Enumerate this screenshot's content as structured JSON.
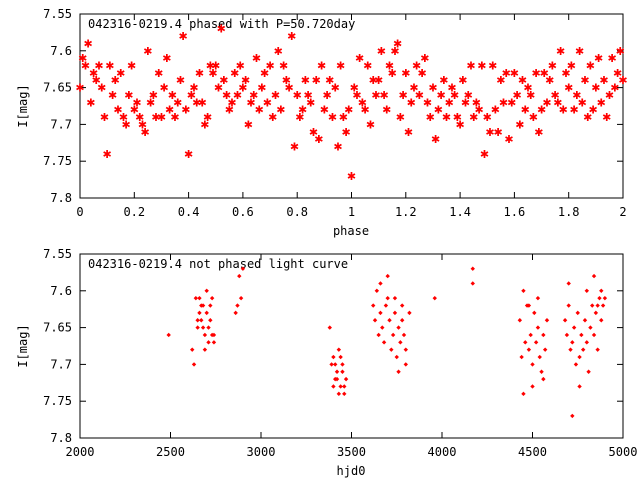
{
  "chart_data": [
    {
      "type": "scatter",
      "title": "042316-0219.4 phased with P=50.720day",
      "xlabel": "phase",
      "ylabel": "I[mag]",
      "xlim": [
        0,
        2
      ],
      "ylim": [
        7.8,
        7.55
      ],
      "y_inverted": true,
      "x_ticks": [
        "0",
        "0.2",
        "0.4",
        "0.6",
        "0.8",
        "1",
        "1.2",
        "1.4",
        "1.6",
        "1.8",
        "2"
      ],
      "y_ticks": [
        "7.55",
        "7.6",
        "7.65",
        "7.7",
        "7.75",
        "7.8"
      ],
      "grid": false,
      "marker": "star",
      "marker_color": "#ff0000",
      "points": [
        [
          0.0,
          7.65
        ],
        [
          0.01,
          7.61
        ],
        [
          0.02,
          7.62
        ],
        [
          0.03,
          7.59
        ],
        [
          0.04,
          7.67
        ],
        [
          0.05,
          7.63
        ],
        [
          0.06,
          7.64
        ],
        [
          0.07,
          7.62
        ],
        [
          0.08,
          7.65
        ],
        [
          0.09,
          7.69
        ],
        [
          0.1,
          7.74
        ],
        [
          0.11,
          7.62
        ],
        [
          0.12,
          7.66
        ],
        [
          0.13,
          7.64
        ],
        [
          0.14,
          7.68
        ],
        [
          0.15,
          7.63
        ],
        [
          0.16,
          7.69
        ],
        [
          0.17,
          7.7
        ],
        [
          0.18,
          7.66
        ],
        [
          0.19,
          7.62
        ],
        [
          0.2,
          7.68
        ],
        [
          0.21,
          7.67
        ],
        [
          0.22,
          7.69
        ],
        [
          0.23,
          7.7
        ],
        [
          0.24,
          7.71
        ],
        [
          0.25,
          7.6
        ],
        [
          0.26,
          7.67
        ],
        [
          0.27,
          7.66
        ],
        [
          0.28,
          7.69
        ],
        [
          0.29,
          7.63
        ],
        [
          0.3,
          7.69
        ],
        [
          0.31,
          7.65
        ],
        [
          0.32,
          7.61
        ],
        [
          0.33,
          7.68
        ],
        [
          0.34,
          7.66
        ],
        [
          0.35,
          7.69
        ],
        [
          0.36,
          7.67
        ],
        [
          0.37,
          7.64
        ],
        [
          0.38,
          7.58
        ],
        [
          0.39,
          7.68
        ],
        [
          0.4,
          7.74
        ],
        [
          0.41,
          7.66
        ],
        [
          0.42,
          7.65
        ],
        [
          0.43,
          7.67
        ],
        [
          0.44,
          7.63
        ],
        [
          0.45,
          7.67
        ],
        [
          0.46,
          7.7
        ],
        [
          0.47,
          7.69
        ],
        [
          0.48,
          7.62
        ],
        [
          0.49,
          7.63
        ],
        [
          0.5,
          7.62
        ],
        [
          0.51,
          7.65
        ],
        [
          0.52,
          7.57
        ],
        [
          0.53,
          7.64
        ],
        [
          0.54,
          7.66
        ],
        [
          0.55,
          7.68
        ],
        [
          0.56,
          7.67
        ],
        [
          0.57,
          7.63
        ],
        [
          0.58,
          7.66
        ],
        [
          0.59,
          7.62
        ],
        [
          0.6,
          7.65
        ],
        [
          0.61,
          7.64
        ],
        [
          0.62,
          7.7
        ],
        [
          0.63,
          7.67
        ],
        [
          0.64,
          7.66
        ],
        [
          0.65,
          7.61
        ],
        [
          0.66,
          7.68
        ],
        [
          0.67,
          7.65
        ],
        [
          0.68,
          7.63
        ],
        [
          0.69,
          7.67
        ],
        [
          0.7,
          7.62
        ],
        [
          0.71,
          7.69
        ],
        [
          0.72,
          7.66
        ],
        [
          0.73,
          7.6
        ],
        [
          0.74,
          7.68
        ],
        [
          0.75,
          7.62
        ],
        [
          0.76,
          7.64
        ],
        [
          0.77,
          7.65
        ],
        [
          0.78,
          7.58
        ],
        [
          0.79,
          7.73
        ],
        [
          0.8,
          7.66
        ],
        [
          0.81,
          7.69
        ],
        [
          0.82,
          7.68
        ],
        [
          0.83,
          7.64
        ],
        [
          0.84,
          7.66
        ],
        [
          0.85,
          7.67
        ],
        [
          0.86,
          7.71
        ],
        [
          0.87,
          7.64
        ],
        [
          0.88,
          7.72
        ],
        [
          0.89,
          7.62
        ],
        [
          0.9,
          7.68
        ],
        [
          0.91,
          7.66
        ],
        [
          0.92,
          7.64
        ],
        [
          0.93,
          7.69
        ],
        [
          0.94,
          7.65
        ],
        [
          0.95,
          7.73
        ],
        [
          0.96,
          7.62
        ],
        [
          0.97,
          7.69
        ],
        [
          0.98,
          7.71
        ],
        [
          0.99,
          7.68
        ],
        [
          1.0,
          7.77
        ],
        [
          1.01,
          7.65
        ],
        [
          1.02,
          7.66
        ],
        [
          1.03,
          7.61
        ],
        [
          1.04,
          7.67
        ],
        [
          1.05,
          7.68
        ],
        [
          1.06,
          7.62
        ],
        [
          1.07,
          7.7
        ],
        [
          1.08,
          7.64
        ],
        [
          1.09,
          7.66
        ],
        [
          1.1,
          7.64
        ],
        [
          1.11,
          7.6
        ],
        [
          1.12,
          7.66
        ],
        [
          1.13,
          7.68
        ],
        [
          1.14,
          7.62
        ],
        [
          1.15,
          7.63
        ],
        [
          1.16,
          7.6
        ],
        [
          1.17,
          7.59
        ],
        [
          1.18,
          7.69
        ],
        [
          1.19,
          7.66
        ],
        [
          1.2,
          7.63
        ],
        [
          1.21,
          7.71
        ],
        [
          1.22,
          7.67
        ],
        [
          1.23,
          7.65
        ],
        [
          1.24,
          7.62
        ],
        [
          1.25,
          7.66
        ],
        [
          1.26,
          7.63
        ],
        [
          1.27,
          7.61
        ],
        [
          1.28,
          7.67
        ],
        [
          1.29,
          7.69
        ],
        [
          1.3,
          7.65
        ],
        [
          1.31,
          7.72
        ],
        [
          1.32,
          7.68
        ],
        [
          1.33,
          7.66
        ],
        [
          1.34,
          7.64
        ],
        [
          1.35,
          7.69
        ],
        [
          1.36,
          7.67
        ],
        [
          1.37,
          7.65
        ],
        [
          1.38,
          7.66
        ],
        [
          1.39,
          7.69
        ],
        [
          1.4,
          7.7
        ],
        [
          1.41,
          7.64
        ],
        [
          1.42,
          7.67
        ],
        [
          1.43,
          7.66
        ],
        [
          1.44,
          7.62
        ],
        [
          1.45,
          7.69
        ],
        [
          1.46,
          7.67
        ],
        [
          1.47,
          7.68
        ],
        [
          1.48,
          7.62
        ],
        [
          1.49,
          7.74
        ],
        [
          1.5,
          7.69
        ],
        [
          1.51,
          7.71
        ],
        [
          1.52,
          7.62
        ],
        [
          1.53,
          7.68
        ],
        [
          1.54,
          7.71
        ],
        [
          1.55,
          7.64
        ],
        [
          1.56,
          7.67
        ],
        [
          1.57,
          7.63
        ],
        [
          1.58,
          7.72
        ],
        [
          1.59,
          7.67
        ],
        [
          1.6,
          7.63
        ],
        [
          1.61,
          7.66
        ],
        [
          1.62,
          7.7
        ],
        [
          1.63,
          7.64
        ],
        [
          1.64,
          7.68
        ],
        [
          1.65,
          7.65
        ],
        [
          1.66,
          7.66
        ],
        [
          1.67,
          7.69
        ],
        [
          1.68,
          7.63
        ],
        [
          1.69,
          7.71
        ],
        [
          1.7,
          7.68
        ],
        [
          1.71,
          7.63
        ],
        [
          1.72,
          7.67
        ],
        [
          1.73,
          7.64
        ],
        [
          1.74,
          7.62
        ],
        [
          1.75,
          7.66
        ],
        [
          1.76,
          7.67
        ],
        [
          1.77,
          7.6
        ],
        [
          1.78,
          7.68
        ],
        [
          1.79,
          7.63
        ],
        [
          1.8,
          7.65
        ],
        [
          1.81,
          7.62
        ],
        [
          1.82,
          7.68
        ],
        [
          1.83,
          7.66
        ],
        [
          1.84,
          7.6
        ],
        [
          1.85,
          7.67
        ],
        [
          1.86,
          7.64
        ],
        [
          1.87,
          7.69
        ],
        [
          1.88,
          7.62
        ],
        [
          1.89,
          7.68
        ],
        [
          1.9,
          7.65
        ],
        [
          1.91,
          7.61
        ],
        [
          1.92,
          7.67
        ],
        [
          1.93,
          7.64
        ],
        [
          1.94,
          7.69
        ],
        [
          1.95,
          7.66
        ],
        [
          1.96,
          7.61
        ],
        [
          1.97,
          7.65
        ],
        [
          1.98,
          7.63
        ],
        [
          1.99,
          7.6
        ],
        [
          2.0,
          7.64
        ]
      ]
    },
    {
      "type": "scatter",
      "title": "042316-0219.4 not phased light curve",
      "xlabel": "hjd0",
      "ylabel": "I[mag]",
      "xlim": [
        2000,
        5000
      ],
      "ylim": [
        7.8,
        7.55
      ],
      "y_inverted": true,
      "x_ticks": [
        "2000",
        "2500",
        "3000",
        "3500",
        "4000",
        "4500",
        "5000"
      ],
      "y_ticks": [
        "7.55",
        "7.6",
        "7.65",
        "7.7",
        "7.75",
        "7.8"
      ],
      "grid": false,
      "marker": "diamond",
      "marker_color": "#ff0000",
      "points": [
        [
          2490,
          7.66
        ],
        [
          2620,
          7.68
        ],
        [
          2630,
          7.7
        ],
        [
          2640,
          7.61
        ],
        [
          2650,
          7.64
        ],
        [
          2660,
          7.63
        ],
        [
          2670,
          7.62
        ],
        [
          2680,
          7.65
        ],
        [
          2690,
          7.66
        ],
        [
          2700,
          7.63
        ],
        [
          2710,
          7.67
        ],
        [
          2720,
          7.64
        ],
        [
          2730,
          7.61
        ],
        [
          2740,
          7.66
        ],
        [
          2650,
          7.65
        ],
        [
          2660,
          7.61
        ],
        [
          2670,
          7.64
        ],
        [
          2680,
          7.62
        ],
        [
          2690,
          7.68
        ],
        [
          2700,
          7.6
        ],
        [
          2710,
          7.65
        ],
        [
          2720,
          7.62
        ],
        [
          2730,
          7.66
        ],
        [
          2740,
          7.67
        ],
        [
          2860,
          7.63
        ],
        [
          2870,
          7.62
        ],
        [
          2880,
          7.58
        ],
        [
          2890,
          7.61
        ],
        [
          2900,
          7.57
        ],
        [
          3380,
          7.65
        ],
        [
          3390,
          7.7
        ],
        [
          3400,
          7.69
        ],
        [
          3410,
          7.72
        ],
        [
          3420,
          7.71
        ],
        [
          3430,
          7.68
        ],
        [
          3440,
          7.73
        ],
        [
          3450,
          7.7
        ],
        [
          3460,
          7.74
        ],
        [
          3470,
          7.72
        ],
        [
          3400,
          7.73
        ],
        [
          3410,
          7.7
        ],
        [
          3420,
          7.72
        ],
        [
          3430,
          7.74
        ],
        [
          3440,
          7.69
        ],
        [
          3450,
          7.71
        ],
        [
          3460,
          7.73
        ],
        [
          3620,
          7.62
        ],
        [
          3630,
          7.64
        ],
        [
          3640,
          7.6
        ],
        [
          3650,
          7.66
        ],
        [
          3660,
          7.63
        ],
        [
          3670,
          7.65
        ],
        [
          3680,
          7.67
        ],
        [
          3690,
          7.62
        ],
        [
          3700,
          7.61
        ],
        [
          3710,
          7.64
        ],
        [
          3720,
          7.68
        ],
        [
          3730,
          7.66
        ],
        [
          3740,
          7.63
        ],
        [
          3750,
          7.69
        ],
        [
          3760,
          7.65
        ],
        [
          3770,
          7.67
        ],
        [
          3780,
          7.64
        ],
        [
          3790,
          7.66
        ],
        [
          3800,
          7.68
        ],
        [
          3660,
          7.59
        ],
        [
          3700,
          7.58
        ],
        [
          3740,
          7.61
        ],
        [
          3780,
          7.62
        ],
        [
          3820,
          7.63
        ],
        [
          3760,
          7.71
        ],
        [
          3800,
          7.7
        ],
        [
          3960,
          7.61
        ],
        [
          4170,
          7.59
        ],
        [
          4170,
          7.57
        ],
        [
          4430,
          7.64
        ],
        [
          4440,
          7.69
        ],
        [
          4450,
          7.74
        ],
        [
          4460,
          7.67
        ],
        [
          4470,
          7.62
        ],
        [
          4480,
          7.68
        ],
        [
          4490,
          7.66
        ],
        [
          4500,
          7.7
        ],
        [
          4510,
          7.63
        ],
        [
          4520,
          7.67
        ],
        [
          4530,
          7.65
        ],
        [
          4540,
          7.69
        ],
        [
          4550,
          7.71
        ],
        [
          4560,
          7.66
        ],
        [
          4570,
          7.68
        ],
        [
          4580,
          7.64
        ],
        [
          4450,
          7.6
        ],
        [
          4480,
          7.62
        ],
        [
          4500,
          7.73
        ],
        [
          4530,
          7.61
        ],
        [
          4560,
          7.72
        ],
        [
          4680,
          7.64
        ],
        [
          4690,
          7.66
        ],
        [
          4700,
          7.62
        ],
        [
          4710,
          7.68
        ],
        [
          4720,
          7.67
        ],
        [
          4730,
          7.65
        ],
        [
          4740,
          7.7
        ],
        [
          4750,
          7.63
        ],
        [
          4760,
          7.69
        ],
        [
          4770,
          7.66
        ],
        [
          4780,
          7.68
        ],
        [
          4790,
          7.64
        ],
        [
          4800,
          7.67
        ],
        [
          4810,
          7.71
        ],
        [
          4820,
          7.65
        ],
        [
          4830,
          7.62
        ],
        [
          4840,
          7.66
        ],
        [
          4850,
          7.63
        ],
        [
          4860,
          7.68
        ],
        [
          4870,
          7.61
        ],
        [
          4880,
          7.64
        ],
        [
          4890,
          7.62
        ],
        [
          4900,
          7.61
        ],
        [
          4700,
          7.59
        ],
        [
          4720,
          7.77
        ],
        [
          4760,
          7.73
        ],
        [
          4800,
          7.6
        ],
        [
          4840,
          7.58
        ],
        [
          4860,
          7.62
        ],
        [
          4880,
          7.6
        ]
      ]
    }
  ]
}
